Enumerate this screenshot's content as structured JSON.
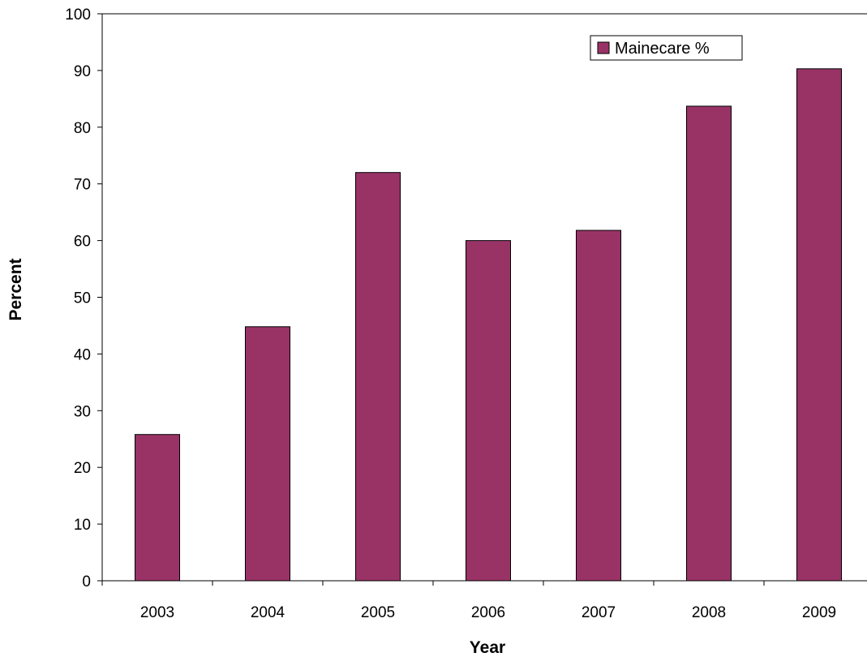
{
  "chart_data": {
    "type": "bar",
    "title": "",
    "categories": [
      "2003",
      "2004",
      "2005",
      "2006",
      "2007",
      "2008",
      "2009"
    ],
    "series": [
      {
        "name": "Mainecare %",
        "values": [
          25.8,
          44.8,
          72.0,
          60.0,
          61.8,
          83.7,
          90.3
        ],
        "color": "#993366"
      }
    ],
    "xlabel": "Year",
    "ylabel": "Percent",
    "ylim": [
      0,
      100
    ],
    "yticks": [
      0,
      10,
      20,
      30,
      40,
      50,
      60,
      70,
      80,
      90,
      100
    ],
    "grid": false,
    "legend_position": "top-right",
    "colors": {
      "bar_fill": "#993366",
      "bar_stroke": "#000000",
      "axis": "#000000",
      "background": "#ffffff"
    }
  }
}
